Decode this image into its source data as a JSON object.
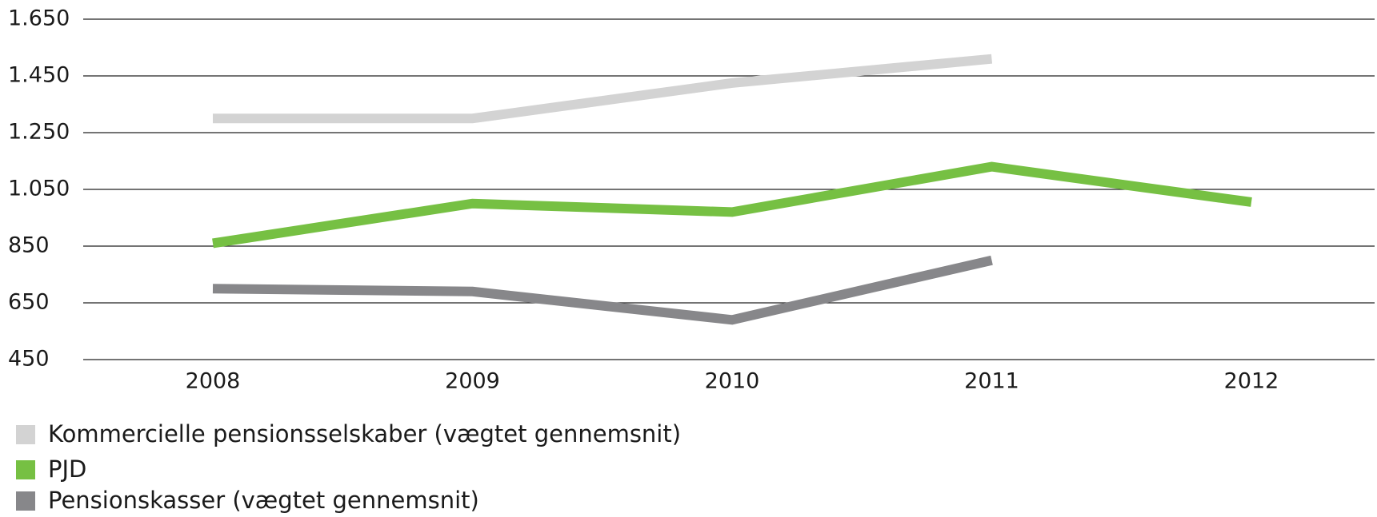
{
  "chart_data": {
    "type": "line",
    "categories": [
      "2008",
      "2009",
      "2010",
      "2011",
      "2012"
    ],
    "series": [
      {
        "name": "Kommercielle pensionsselskaber (vægtet gennemsnit)",
        "color": "#d3d3d3",
        "values": [
          1300,
          1300,
          1425,
          1510,
          null
        ]
      },
      {
        "name": "PJD",
        "color": "#76c043",
        "values": [
          860,
          1000,
          970,
          1130,
          1005
        ]
      },
      {
        "name": "Pensionskasser (vægtet gennemsnit)",
        "color": "#87878a",
        "values": [
          700,
          690,
          590,
          800,
          null
        ]
      }
    ],
    "ylim": [
      450,
      1650
    ],
    "yticks": [
      450,
      650,
      850,
      {
        "value": 1050,
        "label": "1.050"
      },
      {
        "value": 1250,
        "label": "1.250"
      },
      {
        "value": 1450,
        "label": "1.450"
      },
      {
        "value": 1650,
        "label": "1.650"
      }
    ],
    "grid": true
  }
}
